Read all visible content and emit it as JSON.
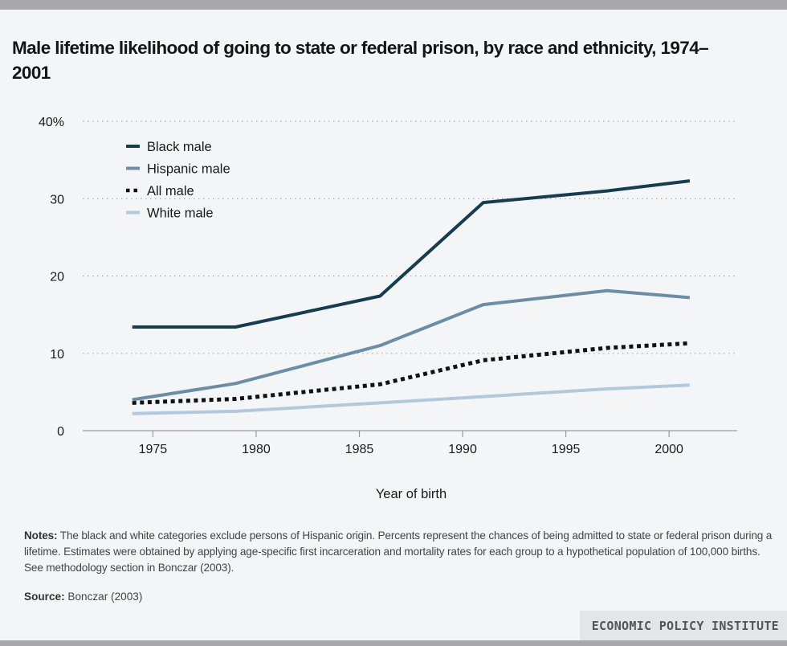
{
  "chart_data": {
    "type": "line",
    "title": "Male lifetime likelihood of going to state or federal prison, by race and ethnicity, 1974–2001",
    "xlabel": "Year of birth",
    "ylabel": "",
    "xlim": [
      1971.6,
      2003.3
    ],
    "ylim": [
      0,
      40
    ],
    "x_ticks": [
      1975,
      1980,
      1985,
      1990,
      1995,
      2000
    ],
    "x_tick_labels": [
      "1975",
      "1980",
      "1985",
      "1990",
      "1995",
      "2000"
    ],
    "y_ticks": [
      0,
      10,
      20,
      30,
      40
    ],
    "y_tick_labels": [
      "0",
      "10",
      "20",
      "30",
      "40%"
    ],
    "grid": true,
    "legend_position": "top-left",
    "series": [
      {
        "name": "Black male",
        "color": "#143d4f",
        "style": "solid",
        "x": [
          1974,
          1979,
          1986,
          1991,
          1997,
          2001
        ],
        "values": [
          13.4,
          13.4,
          17.4,
          29.5,
          31.0,
          32.3
        ]
      },
      {
        "name": "Hispanic male",
        "color": "#6a8ea6",
        "style": "solid",
        "x": [
          1974,
          1979,
          1986,
          1991,
          1997,
          2001
        ],
        "values": [
          4.0,
          6.1,
          11.0,
          16.3,
          18.1,
          17.2
        ]
      },
      {
        "name": "All male",
        "color": "#111111",
        "style": "dotted",
        "x": [
          1974,
          1979,
          1986,
          1991,
          1997,
          2001
        ],
        "values": [
          3.6,
          4.1,
          6.0,
          9.1,
          10.7,
          11.3
        ]
      },
      {
        "name": "White male",
        "color": "#b1c9dc",
        "style": "solid",
        "x": [
          1974,
          1979,
          1986,
          1991,
          1997,
          2001
        ],
        "values": [
          2.2,
          2.5,
          3.6,
          4.4,
          5.4,
          5.9
        ]
      }
    ]
  },
  "notes": {
    "label": "Notes:",
    "text": " The black and white categories exclude persons of Hispanic origin. Percents represent the chances of being admitted to state or federal prison during a lifetime. Estimates were obtained by applying age-specific first incarceration and mortality rates for each group to a hypothetical population of 100,000 births.  See methodology section in Bonczar (2003)."
  },
  "source": {
    "label": "Source:",
    "text": " Bonczar (2003)"
  },
  "brand": "ECONOMIC POLICY INSTITUTE"
}
